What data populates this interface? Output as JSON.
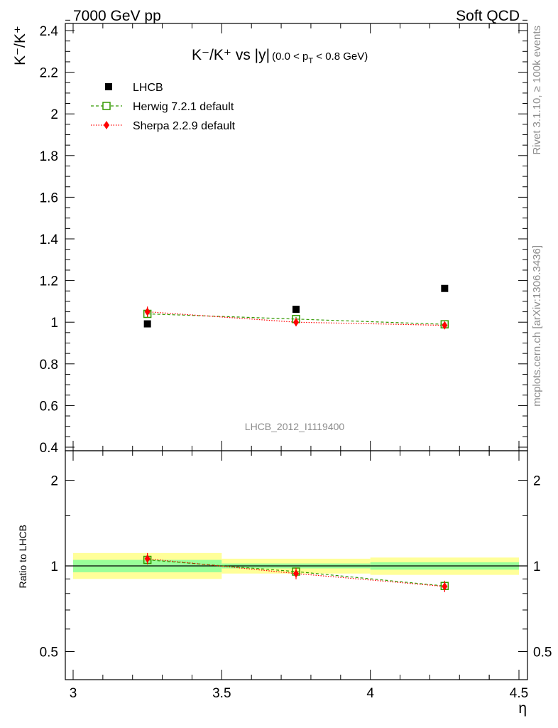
{
  "header": {
    "left": "7000 GeV pp",
    "right": "Soft QCD"
  },
  "side_labels": {
    "rivet": "Rivet 3.1.10, ≥ 100k events",
    "mcplots": "mcplots.cern.ch [arXiv:1306.3436]"
  },
  "chart_data": {
    "type": "scatter",
    "title": {
      "main": "K⁻/K⁺ vs |y|",
      "cut": "(0.0 < p",
      "cut_sub": "T",
      "cut_tail": " < 0.8 GeV)"
    },
    "ylabel": "K⁻/K⁺",
    "xlabel": "η",
    "watermark": "LHCB_2012_I1119400",
    "ylim": [
      0.4,
      2.45
    ],
    "xlim": [
      2.95,
      4.55
    ],
    "x_ticks": [
      3,
      3.5,
      4,
      4.5
    ],
    "x_tick_labels": [
      "3",
      "3.5",
      "4",
      "4.5"
    ],
    "y_ticks": [
      0.4,
      0.6,
      0.8,
      1,
      1.2,
      1.4,
      1.6,
      1.8,
      2,
      2.2,
      2.4
    ],
    "y_tick_labels": [
      "0.4",
      "0.6",
      "0.8",
      "1",
      "1.2",
      "1.4",
      "1.6",
      "1.8",
      "2",
      "2.2",
      "2.4"
    ],
    "x": [
      3.25,
      3.75,
      4.25
    ],
    "bins": [
      [
        3.0,
        3.5
      ],
      [
        3.5,
        4.0
      ],
      [
        4.0,
        4.5
      ]
    ],
    "series": [
      {
        "name": "LHCB",
        "values": [
          0.992,
          1.062,
          1.162
        ],
        "color": "#000000",
        "marker": "square"
      },
      {
        "name": "Herwig 7.2.1 default",
        "values": [
          1.04,
          1.015,
          0.99
        ],
        "errors": [
          0.015,
          0.01,
          0.01
        ],
        "color": "#339900",
        "marker": "open-square",
        "line": "dashed"
      },
      {
        "name": "Sherpa 2.2.9 default",
        "values": [
          1.05,
          1.0,
          0.985
        ],
        "errors": [
          0.025,
          0.02,
          0.015
        ],
        "color": "#ff0000",
        "marker": "diamond",
        "line": "dotted"
      }
    ],
    "ratio": {
      "ylabel": "Ratio to LHCB",
      "ylim": [
        0.37,
        2.5
      ],
      "y_ticks": [
        0.5,
        1,
        2
      ],
      "y_tick_labels": [
        "0.5",
        "1",
        "2"
      ],
      "band_inner": [
        [
          0.95,
          1.05
        ],
        [
          0.98,
          1.02
        ],
        [
          0.97,
          1.03
        ]
      ],
      "band_outer": [
        [
          0.9,
          1.11
        ],
        [
          0.94,
          1.06
        ],
        [
          0.93,
          1.07
        ]
      ],
      "band_inner_color": "#99ff99",
      "band_outer_color": "#ffff99",
      "series": [
        {
          "name": "Herwig 7.2.1 default",
          "values": [
            1.05,
            0.955,
            0.85
          ]
        },
        {
          "name": "Sherpa 2.2.9 default",
          "values": [
            1.06,
            0.94,
            0.847
          ]
        }
      ]
    }
  }
}
